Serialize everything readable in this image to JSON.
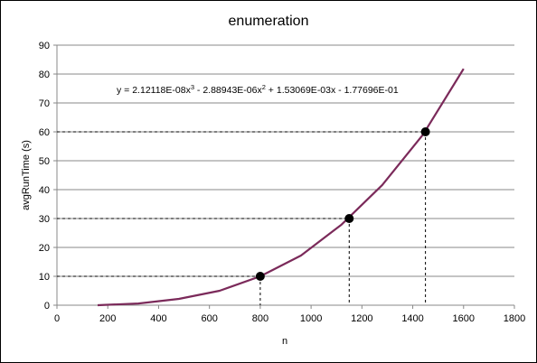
{
  "chart_data": {
    "type": "line",
    "title": "enumeration",
    "xlabel": "n",
    "ylabel": "avgRunTime  (s)",
    "xlim": [
      0,
      1800
    ],
    "ylim": [
      0,
      90
    ],
    "xticks": [
      "0",
      "200",
      "400",
      "600",
      "800",
      "1000",
      "1200",
      "1400",
      "1600",
      "1800"
    ],
    "yticks": [
      "0",
      "10",
      "20",
      "30",
      "40",
      "50",
      "60",
      "70",
      "80",
      "90"
    ],
    "grid": "horizontal",
    "legend": "none",
    "series": [
      {
        "color": "#7b2a5a",
        "x": [
          160,
          320,
          480,
          640,
          800,
          960,
          1120,
          1280,
          1440,
          1600
        ],
        "y": [
          0.0,
          0.6,
          2.2,
          5.0,
          10.0,
          17.2,
          27.9,
          41.6,
          59.0,
          81.8
        ]
      }
    ],
    "trendline_equation": {
      "parts": [
        "y = 2.12118E-08x",
        "3",
        " - 2.88943E-06x",
        "2",
        " + 1.53069E-03x - 1.77696E-01"
      ]
    },
    "highlight_points": [
      {
        "x": 800,
        "y": 10
      },
      {
        "x": 1150,
        "y": 30
      },
      {
        "x": 1450,
        "y": 60
      }
    ]
  }
}
